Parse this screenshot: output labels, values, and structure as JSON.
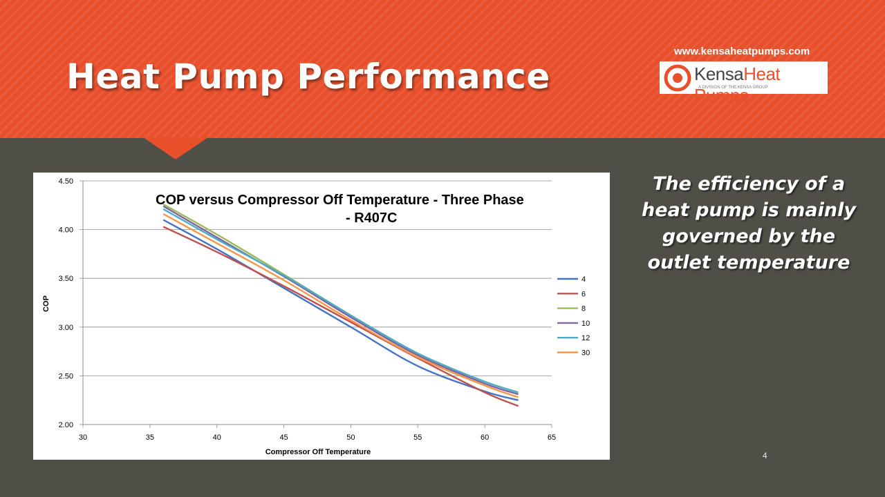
{
  "slide": {
    "title": "Heat Pump Performance",
    "url": "www.kensaheatpumps.com",
    "logo": {
      "word_a": "Kensa",
      "word_b": "Heat Pumps",
      "subtitle": "A DIVISION OF THE KENSA GROUP"
    },
    "side_text": "The efficiency of a heat pump is mainly governed by the outlet temperature",
    "page_number": "4"
  },
  "colors": {
    "header": "#e8502c",
    "background": "#4f4f48"
  },
  "chart_data": {
    "type": "line",
    "title": "COP versus Compressor Off Temperature - Three Phase - R407C",
    "xlabel": "Compressor Off Temperature",
    "ylabel": "COP",
    "xlim": [
      30,
      65
    ],
    "ylim": [
      2.0,
      4.5
    ],
    "xticks": [
      30,
      35,
      40,
      45,
      50,
      55,
      60,
      65
    ],
    "yticks": [
      "2.00",
      "2.50",
      "3.00",
      "3.50",
      "4.00",
      "4.50"
    ],
    "grid": "horizontal",
    "legend_position": "right",
    "x": [
      36,
      40,
      45,
      50,
      55,
      60,
      62.5
    ],
    "series": [
      {
        "name": "4",
        "color": "#4472c4",
        "values": [
          4.1,
          3.8,
          3.4,
          3.0,
          2.6,
          2.34,
          2.25
        ]
      },
      {
        "name": "6",
        "color": "#c0504d",
        "values": [
          4.03,
          3.77,
          3.42,
          3.05,
          2.68,
          2.33,
          2.19
        ]
      },
      {
        "name": "8",
        "color": "#9bbb59",
        "values": [
          4.26,
          3.95,
          3.54,
          3.12,
          2.72,
          2.44,
          2.33
        ]
      },
      {
        "name": "10",
        "color": "#8064a2",
        "values": [
          4.24,
          3.92,
          3.52,
          3.1,
          2.71,
          2.42,
          2.31
        ]
      },
      {
        "name": "12",
        "color": "#4bacc6",
        "values": [
          4.21,
          3.9,
          3.53,
          3.12,
          2.73,
          2.44,
          2.33
        ]
      },
      {
        "name": "30",
        "color": "#f79646",
        "values": [
          4.16,
          3.86,
          3.48,
          3.07,
          2.69,
          2.4,
          2.28
        ]
      }
    ]
  }
}
